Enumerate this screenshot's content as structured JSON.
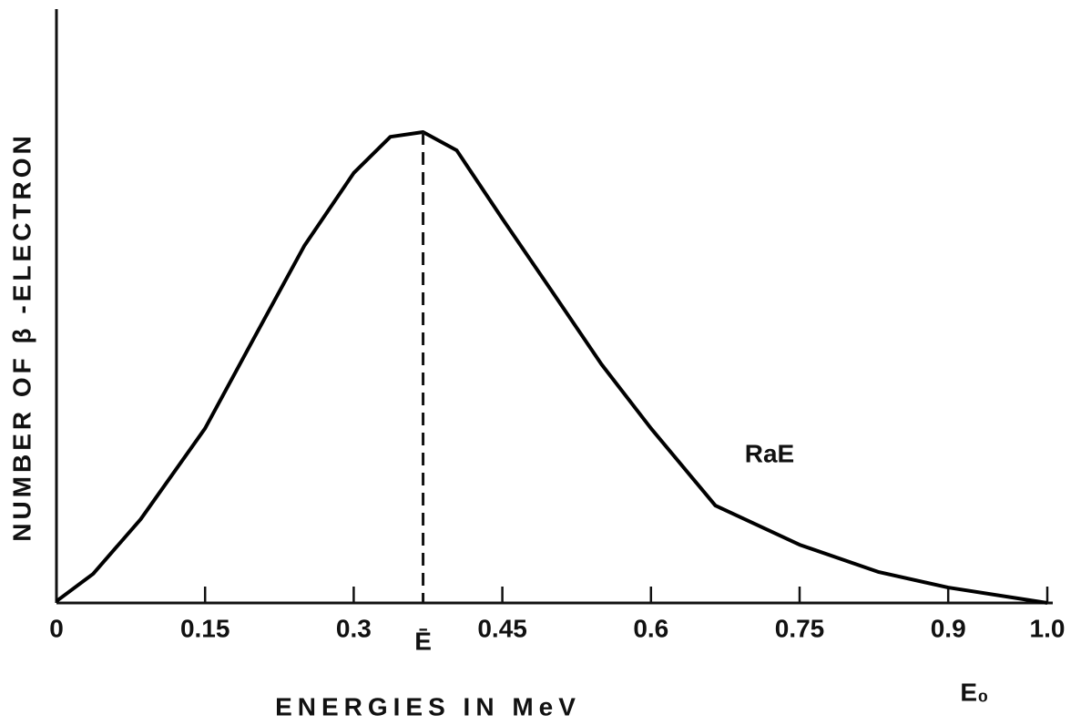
{
  "chart_data": {
    "type": "line",
    "xlabel": "ENERGIES IN MeV",
    "ylabel": "NUMBER OF β -ELECTRON",
    "xlim": [
      0,
      1
    ],
    "ylim": [
      0,
      100
    ],
    "xticks": [
      0,
      0.15,
      0.3,
      0.45,
      0.6,
      0.75,
      0.9,
      {
        "value": 1,
        "label": "1.0"
      }
    ],
    "series": [
      {
        "name": "RaE",
        "color": "#000000",
        "x": [
          0,
          0.037,
          0.085,
          0.15,
          0.2,
          0.25,
          0.3,
          0.337,
          0.37,
          0.404,
          0.45,
          0.5,
          0.55,
          0.6,
          0.665,
          0.75,
          0.83,
          0.9,
          1
        ],
        "values": [
          0.3,
          4.9,
          14.1,
          29.4,
          44.8,
          60.1,
          72.4,
          78.5,
          79.3,
          76.2,
          64.7,
          52.5,
          40.2,
          29.4,
          16.4,
          9.8,
          5.2,
          2.6,
          0
        ]
      }
    ],
    "annotations": [
      {
        "text": "Ē",
        "x": 0.37
      },
      {
        "text": "E₀",
        "x": 1
      }
    ]
  }
}
